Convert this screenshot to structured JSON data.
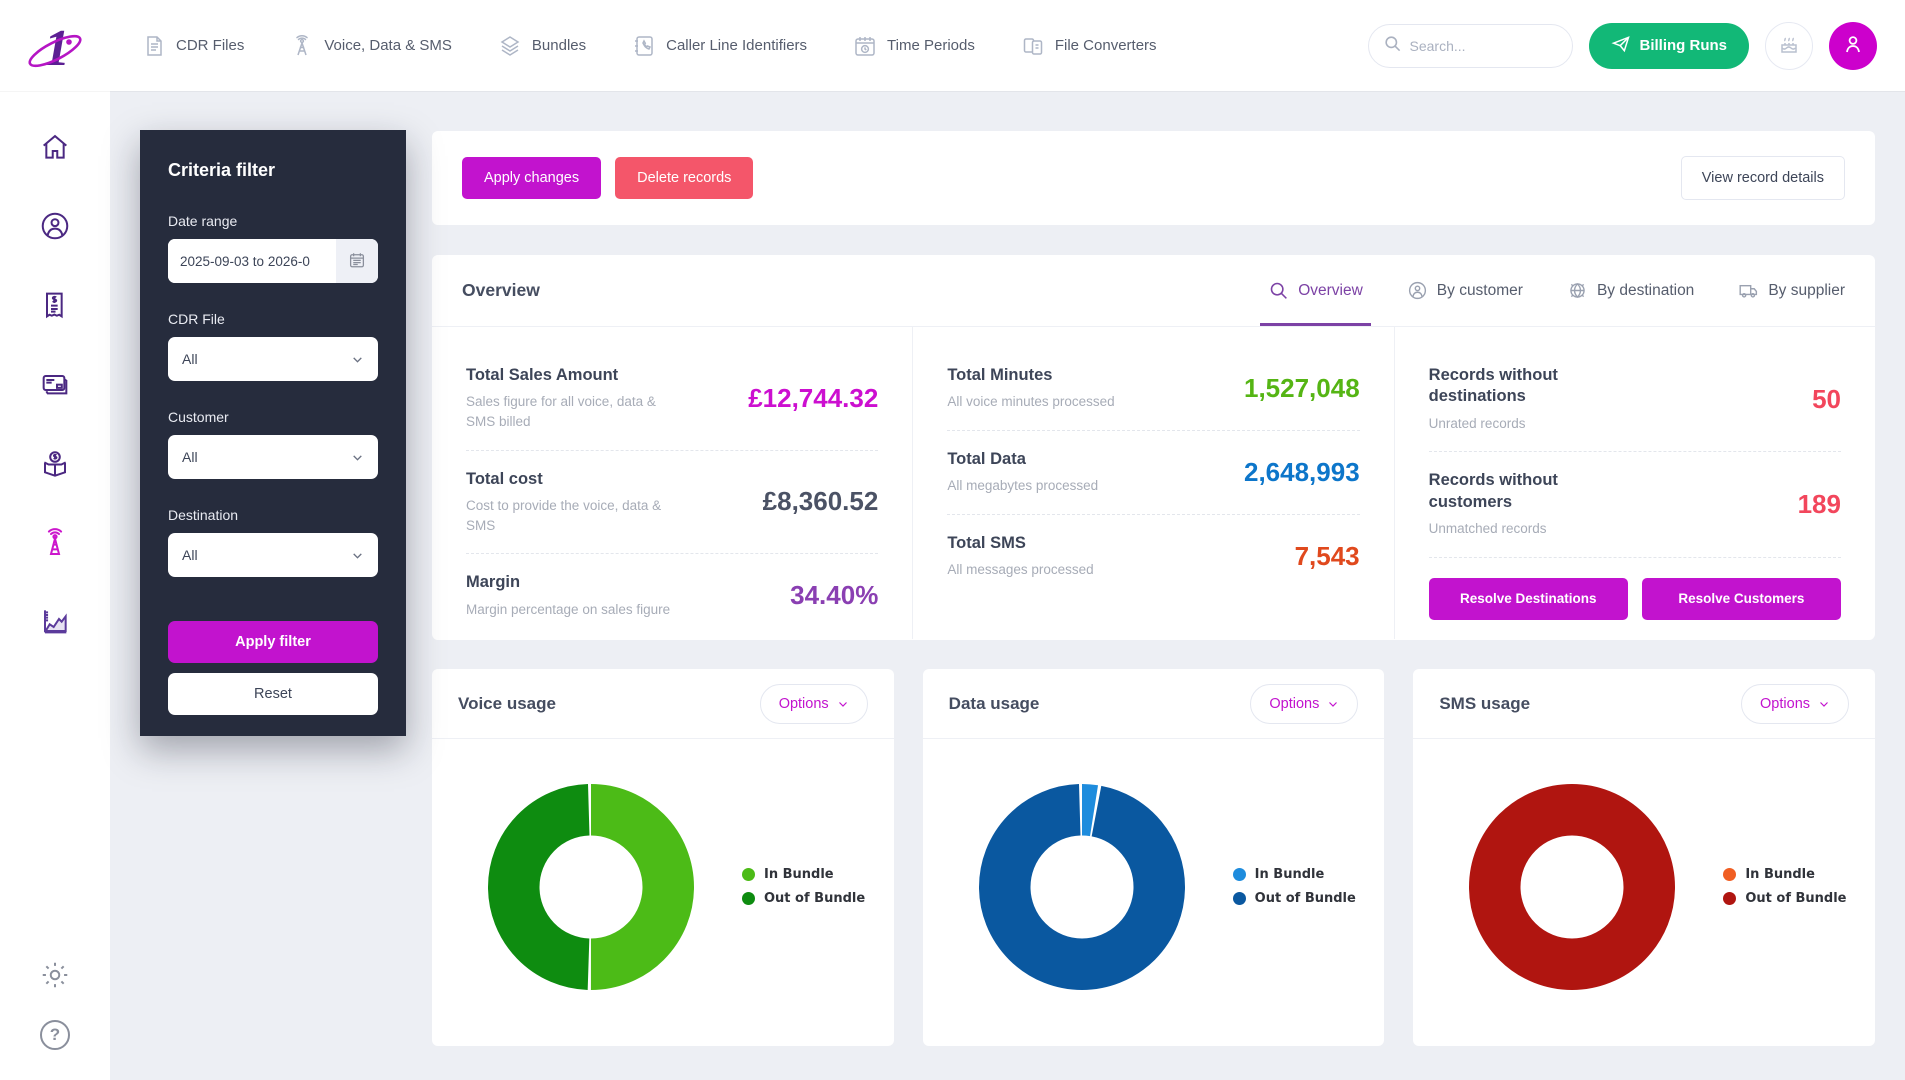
{
  "colors": {
    "accent_magenta": "#c213ce",
    "danger_red": "#f4566a",
    "billing_green": "#12b877",
    "active_tab_purple": "#7c42a5",
    "avatar_magenta": "#cc00cc",
    "filter_panel_bg": "#262c3d"
  },
  "nav": {
    "items": [
      {
        "icon": "document-icon",
        "label": "CDR Files"
      },
      {
        "icon": "antenna-icon",
        "label": "Voice, Data & SMS"
      },
      {
        "icon": "layers-icon",
        "label": "Bundles"
      },
      {
        "icon": "contact-book-icon",
        "label": "Caller Line Identifiers"
      },
      {
        "icon": "calendar-clock-icon",
        "label": "Time Periods"
      },
      {
        "icon": "file-converter-icon",
        "label": "File Converters"
      }
    ],
    "search_placeholder": "Search...",
    "billing_runs_label": "Billing Runs"
  },
  "sidebar": {
    "items": [
      "home-icon",
      "user-icon",
      "receipt-icon",
      "credit-card-icon",
      "bundle-box-icon",
      "antenna-active-icon",
      "area-chart-icon"
    ],
    "bottom_items": [
      "gear-icon",
      "help-icon"
    ],
    "help_glyph": "?"
  },
  "filter": {
    "title": "Criteria filter",
    "date_label": "Date range",
    "date_value": "2025-09-03 to 2026-0",
    "cdr_file_label": "CDR File",
    "cdr_file_value": "All",
    "customer_label": "Customer",
    "customer_value": "All",
    "destination_label": "Destination",
    "destination_value": "All",
    "apply_label": "Apply filter",
    "reset_label": "Reset"
  },
  "actions": {
    "apply_changes": "Apply changes",
    "delete_records": "Delete records",
    "view_record_details": "View record details"
  },
  "overview": {
    "title": "Overview",
    "tabs": [
      {
        "icon": "magnifier-icon",
        "label": "Overview",
        "active": true
      },
      {
        "icon": "person-icon",
        "label": "By customer",
        "active": false
      },
      {
        "icon": "globe-icon",
        "label": "By destination",
        "active": false
      },
      {
        "icon": "truck-icon",
        "label": "By supplier",
        "active": false
      }
    ],
    "financial": [
      {
        "title": "Total Sales Amount",
        "desc": "Sales figure for all voice, data & SMS billed",
        "value": "£12,744.32",
        "value_color": "#cc0fd0"
      },
      {
        "title": "Total cost",
        "desc": "Cost to provide the voice, data & SMS",
        "value": "£8,360.52",
        "value_color": "#4b5265"
      },
      {
        "title": "Margin",
        "desc": "Margin percentage on sales figure",
        "value": "34.40%",
        "value_color": "#8a3fb2"
      }
    ],
    "volumes": [
      {
        "title": "Total Minutes",
        "desc": "All voice minutes processed",
        "value": "1,527,048",
        "value_color": "#55b514"
      },
      {
        "title": "Total Data",
        "desc": "All megabytes processed",
        "value": "2,648,993",
        "value_color": "#0d76ca"
      },
      {
        "title": "Total SMS",
        "desc": "All messages processed",
        "value": "7,543",
        "value_color": "#e0491d"
      }
    ],
    "records": [
      {
        "title": "Records without destinations",
        "desc": "Unrated records",
        "value": "50",
        "value_color": "#f2465c"
      },
      {
        "title": "Records without customers",
        "desc": "Unmatched records",
        "value": "189",
        "value_color": "#f2465c"
      }
    ],
    "resolve_destinations_label": "Resolve Destinations",
    "resolve_customers_label": "Resolve Customers"
  },
  "charts": {
    "options_label": "Options"
  },
  "chart_data": [
    {
      "type": "pie",
      "donut": true,
      "title": "Voice usage",
      "legend_position": "right",
      "slices": [
        {
          "label": "In Bundle",
          "value": 50.5,
          "color": "#4cbb17"
        },
        {
          "label": "Out of Bundle",
          "value": 49.5,
          "color": "#0e8c10"
        }
      ]
    },
    {
      "type": "pie",
      "donut": true,
      "title": "Data usage",
      "legend_position": "right",
      "slices": [
        {
          "label": "In Bundle",
          "value": 3,
          "color": "#1e8cdd"
        },
        {
          "label": "Out of Bundle",
          "value": 97,
          "color": "#0a58a0"
        }
      ]
    },
    {
      "type": "pie",
      "donut": true,
      "title": "SMS usage",
      "legend_position": "right",
      "slices": [
        {
          "label": "In Bundle",
          "value": 0,
          "color": "#f05e23"
        },
        {
          "label": "Out of Bundle",
          "value": 100,
          "color": "#b01510"
        }
      ]
    }
  ]
}
